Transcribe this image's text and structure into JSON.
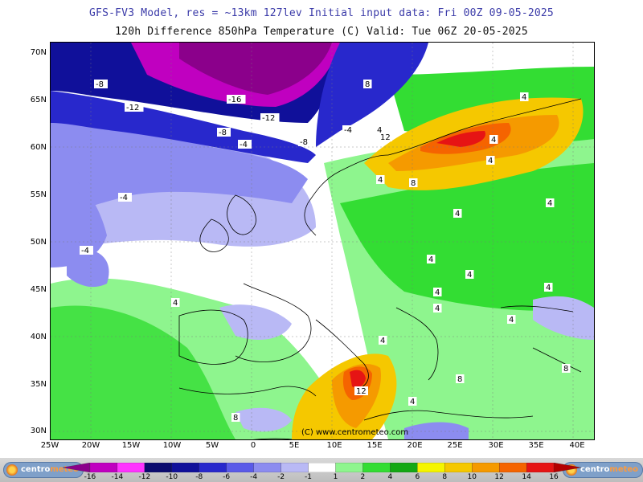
{
  "header": {
    "line1": "GFS-FV3 Model, res = ~13km 127lev   Initial input data: Fri 00Z 09-05-2025",
    "line2": "120h Difference 850hPa Temperature (C)  Valid: Tue 06Z 20-05-2025"
  },
  "axes": {
    "lat_ticks": [
      "70N",
      "65N",
      "60N",
      "55N",
      "50N",
      "45N",
      "40N",
      "35N",
      "30N"
    ],
    "lon_ticks": [
      "25W",
      "20W",
      "15W",
      "10W",
      "5W",
      "0",
      "5E",
      "10E",
      "15E",
      "20E",
      "25E",
      "30E",
      "35E",
      "40E"
    ]
  },
  "map": {
    "projection_extent": {
      "lon": [
        -25,
        42
      ],
      "lat": [
        29,
        71
      ]
    },
    "watermark": "(C) www.centrometeo.com",
    "contour_labels": [
      "-16",
      "-12",
      "-12",
      "-8",
      "-8",
      "-8",
      "-4",
      "-4",
      "-4",
      "-4",
      "4",
      "4",
      "4",
      "4",
      "4",
      "4",
      "4",
      "4",
      "4",
      "4",
      "4",
      "4",
      "4",
      "4",
      "4",
      "4",
      "8",
      "8",
      "8",
      "8",
      "8",
      "12",
      "12"
    ]
  },
  "legend": {
    "values": [
      "-16",
      "-14",
      "-12",
      "-10",
      "-8",
      "-6",
      "-4",
      "-2",
      "-1",
      "1",
      "2",
      "4",
      "6",
      "8",
      "10",
      "12",
      "14",
      "16"
    ],
    "colors": [
      "#8b008b",
      "#c000c0",
      "#ff33ff",
      "#0a0a6e",
      "#10109a",
      "#2828cc",
      "#5a5ae8",
      "#8c8cf0",
      "#b9b9f5",
      "#ffffff",
      "#8ef58e",
      "#33dd33",
      "#14a814",
      "#f5f500",
      "#f5c800",
      "#f59a00",
      "#f56400",
      "#e61414",
      "#b40000"
    ]
  },
  "footer": {
    "logo_left": {
      "part1": "centro",
      "part2": "meteo"
    },
    "logo_right": {
      "part1": "centro",
      "part2": "meteo"
    }
  }
}
